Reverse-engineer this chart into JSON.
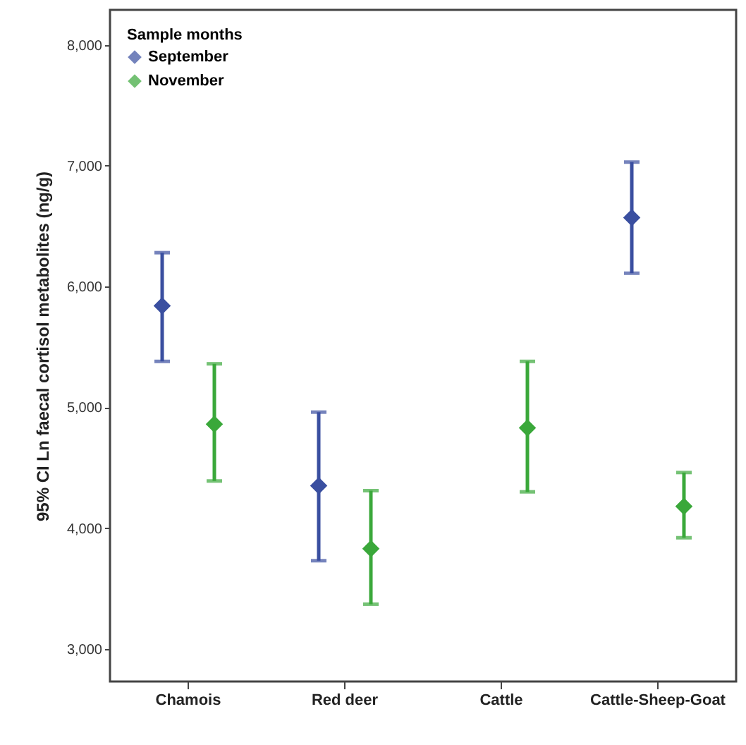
{
  "chart_data": {
    "type": "scatter",
    "ylabel": "95% CI Ln faecal cortisol metabolites (ng/g)",
    "legend_title": "Sample months",
    "legend": "top left",
    "marker": "diamond",
    "grid": false,
    "categories": [
      "Chamois",
      "Red deer",
      "Cattle",
      "Cattle-Sheep-Goat"
    ],
    "series": [
      {
        "name": "September",
        "color": "#3a4fa0",
        "values": [
          5840,
          4350,
          null,
          6570
        ],
        "errors": [
          [
            5380,
            6280
          ],
          [
            3730,
            4960
          ],
          null,
          [
            6110,
            7030
          ]
        ]
      },
      {
        "name": "November",
        "color": "#3aa83a",
        "values": [
          4860,
          3830,
          4830,
          4180
        ],
        "errors": [
          [
            4390,
            5360
          ],
          [
            3370,
            4310
          ],
          [
            4300,
            5380
          ],
          [
            3920,
            4460
          ]
        ]
      }
    ],
    "ylim": [
      2730,
      8290
    ],
    "yticks": [
      {
        "value": 3000,
        "label": "3,000"
      },
      {
        "value": 4000,
        "label": "4,000"
      },
      {
        "value": 5000,
        "label": "5,000"
      },
      {
        "value": 6000,
        "label": "6,000"
      },
      {
        "value": 7000,
        "label": "7,000"
      },
      {
        "value": 8000,
        "label": "8,000"
      }
    ]
  }
}
